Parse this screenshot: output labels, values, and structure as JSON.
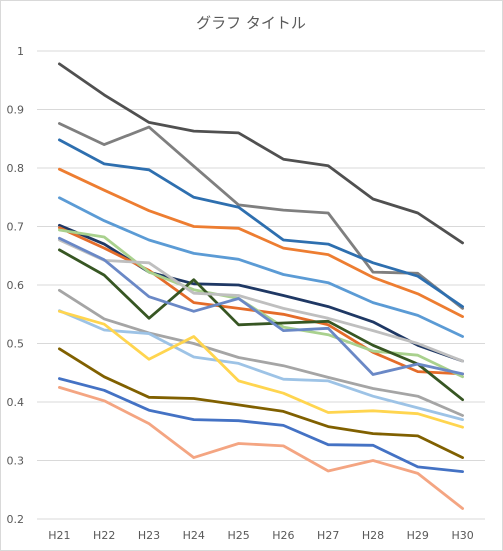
{
  "chart_data": {
    "type": "line",
    "title": "グラフ タイトル",
    "x": [
      "H21",
      "H22",
      "H23",
      "H24",
      "H25",
      "H26",
      "H27",
      "H28",
      "H29",
      "H30"
    ],
    "ylim": [
      0.2,
      1.0
    ],
    "yticks": [
      "0.2",
      "0.3",
      "0.4",
      "0.5",
      "0.6",
      "0.7",
      "0.8",
      "0.9",
      "1"
    ],
    "grid": true,
    "legend": "none",
    "series": [
      {
        "color": "#505050",
        "values": [
          0.978,
          0.925,
          0.878,
          0.863,
          0.86,
          0.815,
          0.804,
          0.747,
          0.723,
          0.672
        ]
      },
      {
        "color": "#7f7f7f",
        "values": [
          0.876,
          0.84,
          0.87,
          0.803,
          0.737,
          0.728,
          0.723,
          0.622,
          0.62,
          0.56
        ]
      },
      {
        "color": "#2e6faf",
        "values": [
          0.848,
          0.807,
          0.797,
          0.75,
          0.733,
          0.677,
          0.67,
          0.638,
          0.615,
          0.563
        ]
      },
      {
        "color": "#ed7d31",
        "values": [
          0.798,
          0.762,
          0.727,
          0.7,
          0.697,
          0.663,
          0.652,
          0.613,
          0.585,
          0.546
        ]
      },
      {
        "color": "#5b9bd5",
        "values": [
          0.749,
          0.71,
          0.677,
          0.654,
          0.644,
          0.618,
          0.604,
          0.57,
          0.548,
          0.512
        ]
      },
      {
        "color": "#1f3864",
        "values": [
          0.702,
          0.67,
          0.622,
          0.602,
          0.6,
          0.582,
          0.563,
          0.537,
          0.497,
          0.47
        ]
      },
      {
        "color": "#e46c2a",
        "values": [
          0.698,
          0.663,
          0.625,
          0.57,
          0.56,
          0.55,
          0.532,
          0.485,
          0.452,
          0.448
        ]
      },
      {
        "color": "#a9d18e",
        "values": [
          0.694,
          0.682,
          0.622,
          0.592,
          0.577,
          0.528,
          0.515,
          0.487,
          0.48,
          0.443
        ]
      },
      {
        "color": "#375623",
        "values": [
          0.66,
          0.617,
          0.543,
          0.609,
          0.532,
          0.535,
          0.538,
          0.497,
          0.465,
          0.404
        ]
      },
      {
        "color": "#bfbfbf",
        "values": [
          0.677,
          0.642,
          0.638,
          0.586,
          0.582,
          0.56,
          0.543,
          0.522,
          0.5,
          0.47
        ]
      },
      {
        "color": "#6a88c6",
        "values": [
          0.68,
          0.643,
          0.58,
          0.555,
          0.577,
          0.522,
          0.526,
          0.447,
          0.465,
          0.448
        ]
      },
      {
        "color": "#a5a5a5",
        "values": [
          0.591,
          0.542,
          0.518,
          0.5,
          0.476,
          0.462,
          0.442,
          0.423,
          0.41,
          0.377
        ]
      },
      {
        "color": "#9dc3e6",
        "values": [
          0.556,
          0.523,
          0.517,
          0.477,
          0.466,
          0.439,
          0.436,
          0.41,
          0.39,
          0.37
        ]
      },
      {
        "color": "#ffd54f",
        "values": [
          0.555,
          0.533,
          0.473,
          0.512,
          0.436,
          0.415,
          0.382,
          0.385,
          0.38,
          0.357
        ]
      },
      {
        "color": "#806000",
        "values": [
          0.491,
          0.443,
          0.408,
          0.406,
          0.395,
          0.384,
          0.358,
          0.346,
          0.342,
          0.305
        ]
      },
      {
        "color": "#4472c4",
        "values": [
          0.44,
          0.42,
          0.386,
          0.37,
          0.368,
          0.36,
          0.327,
          0.326,
          0.289,
          0.281
        ]
      },
      {
        "color": "#f4a582",
        "values": [
          0.425,
          0.402,
          0.363,
          0.305,
          0.329,
          0.325,
          0.282,
          0.3,
          0.278,
          0.218
        ]
      }
    ]
  }
}
